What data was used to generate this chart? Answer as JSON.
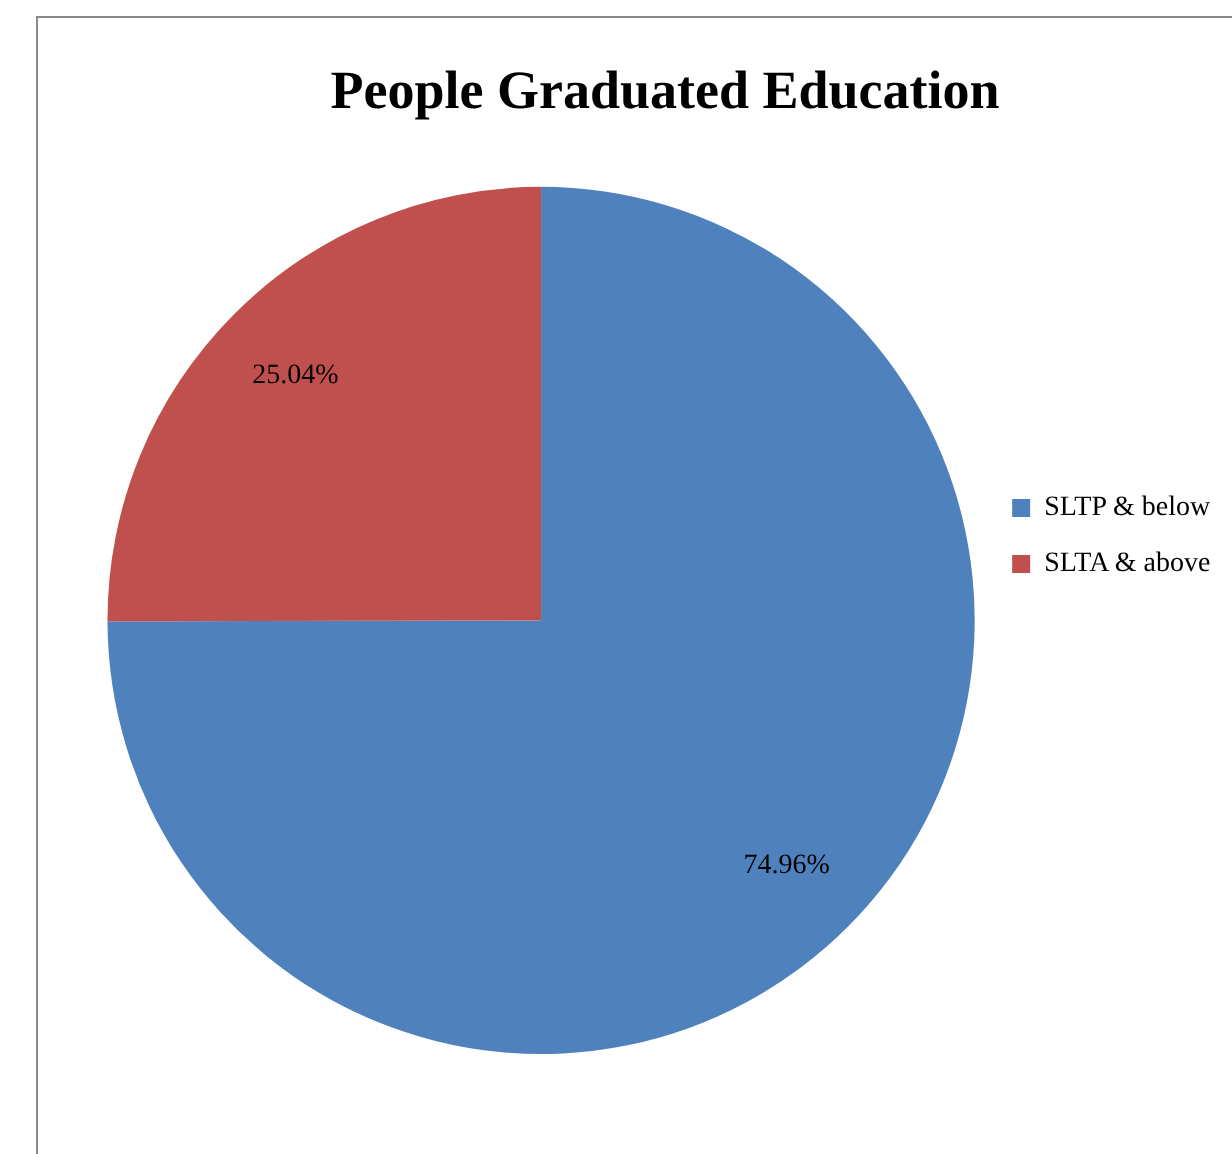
{
  "chart_data": {
    "type": "pie",
    "title": "People Graduated Education",
    "categories": [
      "SLTP & below",
      "SLTA & above"
    ],
    "values": [
      74.96,
      25.04
    ],
    "colors": [
      "#4f81bd",
      "#c0504d"
    ],
    "value_labels": [
      "74.96%",
      "25.04%"
    ],
    "legend": "right"
  }
}
